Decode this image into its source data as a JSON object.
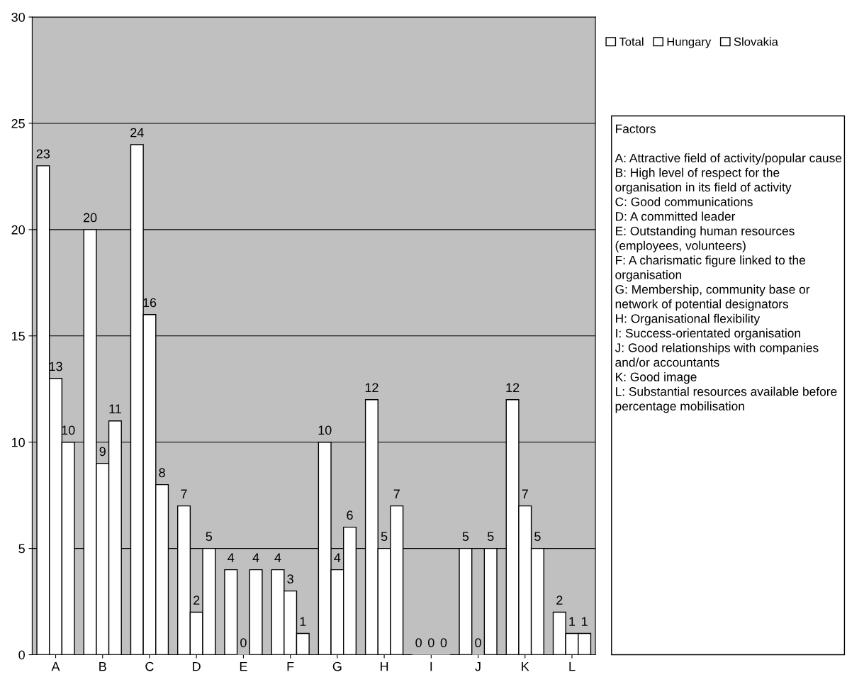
{
  "chart_data": {
    "type": "bar",
    "categories": [
      "A",
      "B",
      "C",
      "D",
      "E",
      "F",
      "G",
      "H",
      "I",
      "J",
      "K",
      "L"
    ],
    "series": [
      {
        "name": "Total",
        "color": "#ffffff",
        "values": [
          23,
          20,
          24,
          7,
          4,
          4,
          10,
          12,
          0,
          5,
          12,
          2
        ]
      },
      {
        "name": "Hungary",
        "color": "#ffffff",
        "values": [
          13,
          9,
          16,
          2,
          0,
          3,
          4,
          5,
          0,
          0,
          7,
          1
        ]
      },
      {
        "name": "Slovakia",
        "color": "#ffffff",
        "values": [
          10,
          11,
          8,
          5,
          4,
          1,
          6,
          7,
          0,
          5,
          5,
          1
        ]
      }
    ],
    "ylim": [
      0,
      30
    ],
    "yticks": [
      0,
      5,
      10,
      15,
      20,
      25,
      30
    ],
    "grid": "y",
    "legend": "top right",
    "data_labels": true,
    "annotations": [
      "Factors",
      "A: Attractive field of activity/popular cause",
      "B: High level of respect for the organisation in its field of activity",
      "C: Good communications",
      "D: A committed leader",
      "E: Outstanding human resources (employees, volunteers)",
      "F: A charismatic figure linked to the organisation",
      "G: Membership, community base or network of potential designators",
      "H: Organisational flexibility",
      "I: Success-orientated organisation",
      "J: Good relationships with companies and/or accountants",
      "K: Good image",
      "L: Substantial resources available before percentage mobilisation"
    ]
  }
}
